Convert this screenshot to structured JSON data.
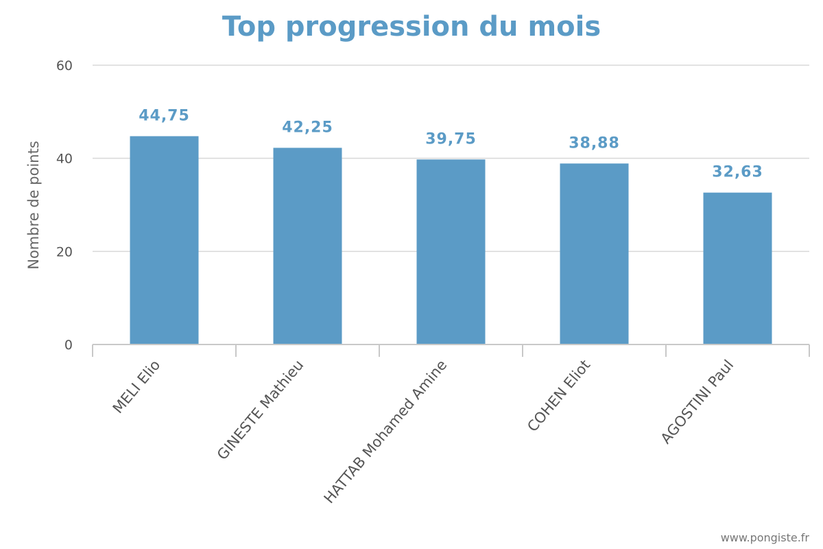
{
  "credit": "www.pongiste.fr",
  "colors": {
    "bar": "#5b9bc6",
    "title": "#5b9bc6",
    "value_label": "#5b9bc6",
    "grid": "#d8d8d8"
  },
  "chart_data": {
    "type": "bar",
    "title": "Top progression du mois",
    "xlabel": "",
    "ylabel": "Nombre de points",
    "categories": [
      "MELI Elio",
      "GINESTE Mathieu",
      "HATTAB Mohamed Amine",
      "COHEN Eliot",
      "AGOSTINI Paul"
    ],
    "values": [
      44.75,
      42.25,
      39.75,
      38.88,
      32.63
    ],
    "value_labels": [
      "44,75",
      "42,25",
      "39,75",
      "38,88",
      "32,63"
    ],
    "ylim": [
      0,
      60
    ],
    "yticks": [
      0,
      20,
      40,
      60
    ],
    "ytick_labels": [
      "0",
      "20",
      "40",
      "60"
    ],
    "grid": true,
    "legend": "none"
  }
}
